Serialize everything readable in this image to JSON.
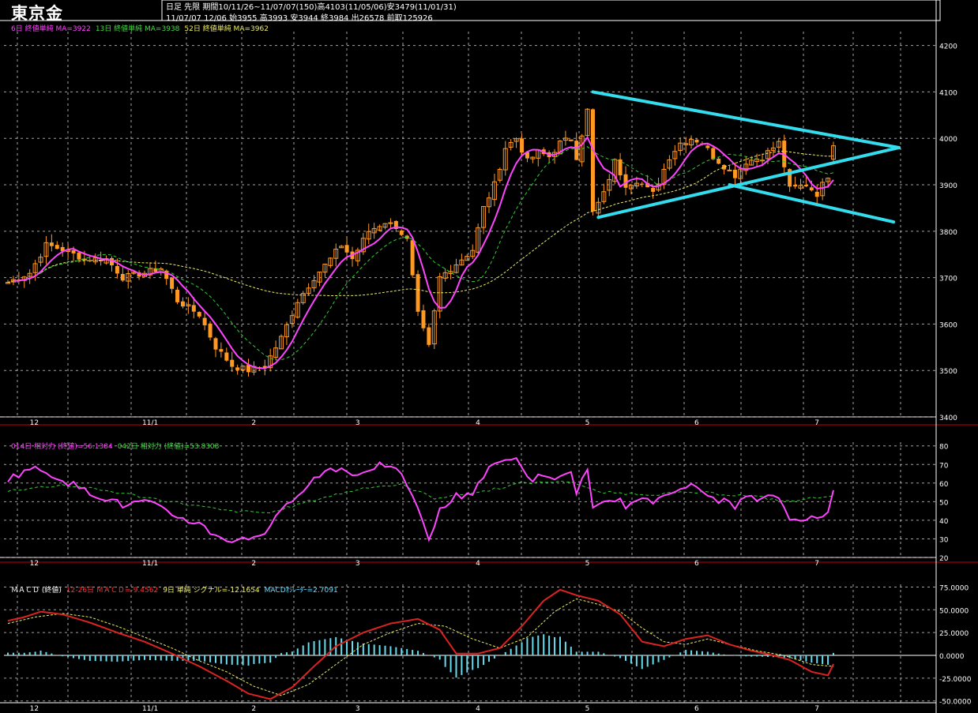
{
  "header": {
    "title": "東京金",
    "info_line1": "日足 先限 期間10/11/26~11/07/07(150)高4103(11/05/06)安3479(11/01/31)",
    "info_line2": "11/07/07 12/06 始3955 高3993 安3944 終3984 出26578 前取125926"
  },
  "legends": {
    "main": [
      {
        "text": "6日 終値単純 MA=3922",
        "color": "#ff44ff"
      },
      {
        "text": "13日 終値単純 MA=3938",
        "color": "#44dd44"
      },
      {
        "text": "52日 終値単純 MA=3962",
        "color": "#eeee66"
      }
    ],
    "rsi": [
      {
        "text": "014日 相対力 (終値)=56.1384",
        "color": "#ff44ff"
      },
      {
        "text": "042日 相対力 (終値)=53.8308",
        "color": "#44dd44"
      }
    ],
    "macd": [
      {
        "text": "ＭＡＣＤ (終値)",
        "color": "#ffffff"
      },
      {
        "text": "12-26日 ＭＡＣＤ=-9.4562",
        "color": "#ff3333"
      },
      {
        "text": "9日 単純 シグナル=-12.1654",
        "color": "#eeee66"
      },
      {
        "text": "MACDｵｼﾚｰﾀｰ=2.7091",
        "color": "#66ddff"
      }
    ]
  },
  "x_labels": [
    "12",
    "11/1",
    "2",
    "3",
    "4",
    "5",
    "6",
    "7"
  ],
  "colors": {
    "candle": "#ff9922",
    "ma6": "#ff44ff",
    "ma13": "#33cc33",
    "ma52": "#eeee66",
    "trendline": "#33ddee",
    "macd": "#dd2222",
    "macd_signal": "#eeee66",
    "oscillator": "#66ddee",
    "grid": "#cccccc",
    "frame": "#cc0000"
  },
  "chart_data": [
    {
      "type": "candlestick",
      "title": "東京金",
      "y_ticks": [
        4200,
        4100,
        4000,
        3900,
        3800,
        3700,
        3600,
        3500,
        3400
      ],
      "ylim": [
        3400,
        4230
      ],
      "x_range": [
        0,
        149
      ],
      "month_ticks": [
        {
          "label": "12",
          "x": 4
        },
        {
          "label": "11/1",
          "x": 25
        },
        {
          "label": "2",
          "x": 45
        },
        {
          "label": "3",
          "x": 64
        },
        {
          "label": "4",
          "x": 86
        },
        {
          "label": "5",
          "x": 106
        },
        {
          "label": "6",
          "x": 126
        },
        {
          "label": "7",
          "x": 148
        }
      ],
      "close_anchors": [
        [
          0,
          3690
        ],
        [
          4,
          3710
        ],
        [
          7,
          3770
        ],
        [
          10,
          3760
        ],
        [
          14,
          3740
        ],
        [
          18,
          3740
        ],
        [
          21,
          3700
        ],
        [
          25,
          3710
        ],
        [
          28,
          3720
        ],
        [
          31,
          3650
        ],
        [
          35,
          3620
        ],
        [
          38,
          3550
        ],
        [
          41,
          3510
        ],
        [
          44,
          3500
        ],
        [
          47,
          3510
        ],
        [
          50,
          3570
        ],
        [
          53,
          3650
        ],
        [
          56,
          3700
        ],
        [
          59,
          3740
        ],
        [
          61,
          3770
        ],
        [
          63,
          3740
        ],
        [
          66,
          3800
        ],
        [
          69,
          3820
        ],
        [
          71,
          3810
        ],
        [
          73,
          3780
        ],
        [
          75,
          3620
        ],
        [
          77,
          3550
        ],
        [
          79,
          3700
        ],
        [
          82,
          3730
        ],
        [
          85,
          3760
        ],
        [
          87,
          3850
        ],
        [
          89,
          3900
        ],
        [
          91,
          3980
        ],
        [
          93,
          4000
        ],
        [
          95,
          3950
        ],
        [
          97,
          3970
        ],
        [
          99,
          3960
        ],
        [
          101,
          3990
        ],
        [
          103,
          4000
        ],
        [
          104,
          3960
        ],
        [
          106,
          4060
        ],
        [
          107,
          3840
        ],
        [
          109,
          3880
        ],
        [
          111,
          3950
        ],
        [
          113,
          3900
        ],
        [
          115,
          3910
        ],
        [
          118,
          3880
        ],
        [
          121,
          3960
        ],
        [
          123,
          3990
        ],
        [
          125,
          4000
        ],
        [
          127,
          3990
        ],
        [
          129,
          3960
        ],
        [
          131,
          3940
        ],
        [
          133,
          3920
        ],
        [
          135,
          3950
        ],
        [
          138,
          3960
        ],
        [
          141,
          3990
        ],
        [
          143,
          3890
        ],
        [
          146,
          3900
        ],
        [
          148,
          3880
        ],
        [
          150,
          3920
        ],
        [
          151,
          3984
        ]
      ],
      "last_candle": {
        "open": 3955,
        "high": 3993,
        "low": 3944,
        "close": 3984
      },
      "moving_averages": [
        {
          "name": "6日 終値単純",
          "last": 3922
        },
        {
          "name": "13日 終値単純",
          "last": 3938
        },
        {
          "name": "52日 終値単純",
          "last": 3962
        }
      ],
      "trendlines": [
        {
          "from": [
            107,
            4100
          ],
          "to": [
            163,
            3980
          ]
        },
        {
          "from": [
            108,
            3830
          ],
          "to": [
            163,
            3980
          ]
        },
        {
          "from": [
            132,
            3900
          ],
          "to": [
            162,
            3820
          ]
        }
      ]
    },
    {
      "type": "line",
      "title": "相対力 (終値)",
      "y_ticks": [
        80,
        70,
        60,
        50,
        40,
        30,
        20
      ],
      "ylim": [
        20,
        82
      ],
      "series": [
        {
          "name": "014日 相対力 (終値)",
          "anchors": [
            [
              0,
              62
            ],
            [
              4,
              68
            ],
            [
              7,
              66
            ],
            [
              10,
              62
            ],
            [
              14,
              56
            ],
            [
              18,
              52
            ],
            [
              21,
              48
            ],
            [
              25,
              50
            ],
            [
              28,
              46
            ],
            [
              31,
              42
            ],
            [
              35,
              38
            ],
            [
              38,
              32
            ],
            [
              41,
              29
            ],
            [
              44,
              30
            ],
            [
              47,
              34
            ],
            [
              50,
              44
            ],
            [
              53,
              55
            ],
            [
              56,
              62
            ],
            [
              59,
              68
            ],
            [
              61,
              68
            ],
            [
              63,
              64
            ],
            [
              66,
              68
            ],
            [
              69,
              70
            ],
            [
              71,
              66
            ],
            [
              73,
              60
            ],
            [
              75,
              45
            ],
            [
              77,
              30
            ],
            [
              79,
              45
            ],
            [
              82,
              53
            ],
            [
              85,
              55
            ],
            [
              87,
              64
            ],
            [
              89,
              70
            ],
            [
              91,
              72
            ],
            [
              93,
              75
            ],
            [
              95,
              62
            ],
            [
              97,
              63
            ],
            [
              99,
              62
            ],
            [
              101,
              64
            ],
            [
              103,
              65
            ],
            [
              104,
              56
            ],
            [
              106,
              66
            ],
            [
              107,
              45
            ],
            [
              109,
              49
            ],
            [
              111,
              52
            ],
            [
              113,
              48
            ],
            [
              115,
              50
            ],
            [
              118,
              50
            ],
            [
              121,
              56
            ],
            [
              123,
              58
            ],
            [
              125,
              58
            ],
            [
              127,
              55
            ],
            [
              129,
              52
            ],
            [
              131,
              50
            ],
            [
              133,
              48
            ],
            [
              135,
              52
            ],
            [
              138,
              51
            ],
            [
              141,
              53
            ],
            [
              143,
              40
            ],
            [
              146,
              42
            ],
            [
              148,
              40
            ],
            [
              150,
              44
            ],
            [
              151,
              56.1384
            ]
          ]
        },
        {
          "name": "042日 相対力 (終値)",
          "anchors": [
            [
              0,
              56
            ],
            [
              10,
              59
            ],
            [
              20,
              55
            ],
            [
              30,
              50
            ],
            [
              40,
              45
            ],
            [
              48,
              44
            ],
            [
              56,
              51
            ],
            [
              66,
              58
            ],
            [
              72,
              59
            ],
            [
              78,
              52
            ],
            [
              86,
              55
            ],
            [
              94,
              60
            ],
            [
              103,
              61
            ],
            [
              108,
              55
            ],
            [
              118,
              54
            ],
            [
              126,
              55
            ],
            [
              136,
              53
            ],
            [
              143,
              50
            ],
            [
              151,
              53.8308
            ]
          ]
        }
      ]
    },
    {
      "type": "bar+line",
      "title": "ＭＡＣＤ (終値)",
      "y_ticks": [
        75,
        50,
        25,
        0,
        -25,
        -50
      ],
      "y_tick_labels": [
        "75.0000",
        "50.0000",
        "25.0000",
        "0.0000",
        "-25.0000",
        "-50.0000"
      ],
      "ylim": [
        -52,
        78
      ],
      "series": [
        {
          "name": "12-26日 ＭＡＣＤ",
          "anchors": [
            [
              0,
              38
            ],
            [
              3,
              42
            ],
            [
              6,
              48
            ],
            [
              10,
              45
            ],
            [
              15,
              36
            ],
            [
              20,
              25
            ],
            [
              25,
              15
            ],
            [
              30,
              2
            ],
            [
              35,
              -12
            ],
            [
              40,
              -28
            ],
            [
              44,
              -42
            ],
            [
              48,
              -48
            ],
            [
              52,
              -35
            ],
            [
              56,
              -12
            ],
            [
              60,
              10
            ],
            [
              65,
              25
            ],
            [
              70,
              35
            ],
            [
              75,
              40
            ],
            [
              79,
              28
            ],
            [
              82,
              2
            ],
            [
              86,
              2
            ],
            [
              90,
              8
            ],
            [
              94,
              32
            ],
            [
              98,
              60
            ],
            [
              101,
              72
            ],
            [
              104,
              66
            ],
            [
              108,
              60
            ],
            [
              112,
              45
            ],
            [
              116,
              15
            ],
            [
              120,
              10
            ],
            [
              124,
              18
            ],
            [
              128,
              22
            ],
            [
              132,
              12
            ],
            [
              136,
              5
            ],
            [
              140,
              0
            ],
            [
              143,
              -5
            ],
            [
              147,
              -18
            ],
            [
              150,
              -22
            ],
            [
              151,
              -9.4562
            ]
          ]
        },
        {
          "name": "9日 単純 シグナル",
          "anchors": [
            [
              0,
              35
            ],
            [
              5,
              42
            ],
            [
              10,
              46
            ],
            [
              15,
              42
            ],
            [
              20,
              32
            ],
            [
              25,
              20
            ],
            [
              30,
              8
            ],
            [
              35,
              -6
            ],
            [
              40,
              -18
            ],
            [
              45,
              -34
            ],
            [
              50,
              -44
            ],
            [
              55,
              -32
            ],
            [
              60,
              -10
            ],
            [
              65,
              12
            ],
            [
              70,
              25
            ],
            [
              75,
              35
            ],
            [
              80,
              32
            ],
            [
              85,
              18
            ],
            [
              90,
              8
            ],
            [
              95,
              20
            ],
            [
              100,
              48
            ],
            [
              104,
              62
            ],
            [
              108,
              56
            ],
            [
              112,
              48
            ],
            [
              116,
              30
            ],
            [
              120,
              15
            ],
            [
              124,
              12
            ],
            [
              128,
              18
            ],
            [
              132,
              12
            ],
            [
              137,
              5
            ],
            [
              142,
              0
            ],
            [
              147,
              -10
            ],
            [
              151,
              -12.1654
            ]
          ]
        }
      ],
      "oscillator_last": 2.7091
    }
  ]
}
